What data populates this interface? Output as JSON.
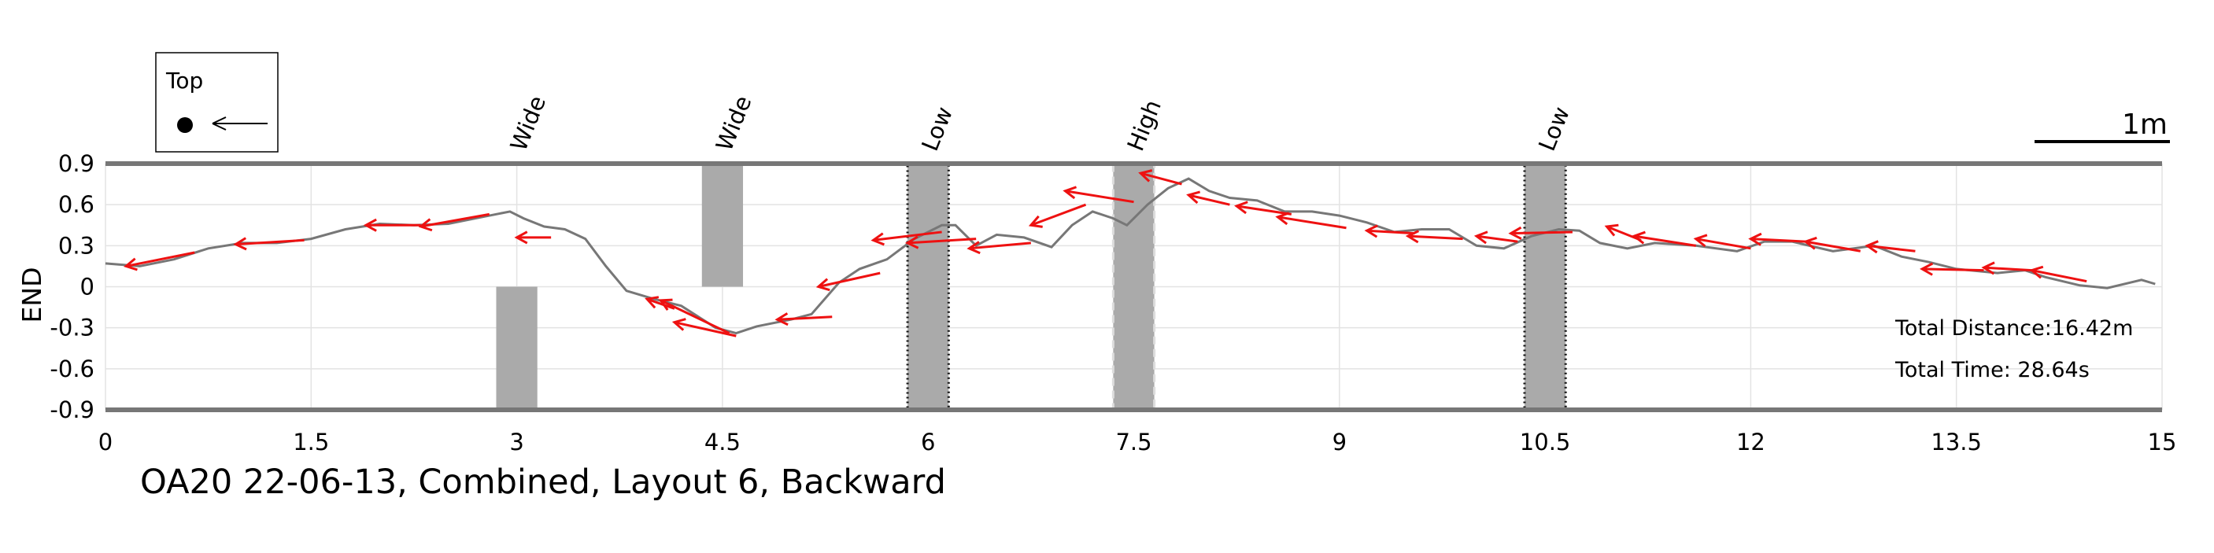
{
  "chart_data": {
    "type": "line",
    "title": "OA20 22-06-13, Combined, Layout 6, Backward",
    "ylabel": "END",
    "xlabel": "",
    "xlim": [
      0,
      15
    ],
    "ylim": [
      -0.9,
      0.9
    ],
    "xticks": [
      "0",
      "1.5",
      "3",
      "4.5",
      "6",
      "7.5",
      "9",
      "10.5",
      "12",
      "13.5",
      "15"
    ],
    "yticks": [
      "0.9",
      "0.6",
      "0.3",
      "0",
      "-0.3",
      "-0.6",
      "-0.9"
    ],
    "grid": true,
    "path_color": "#777777",
    "arrow_color": "#ee1111",
    "obstacle_color": "#aaaaaa",
    "path": [
      [
        0.0,
        0.17
      ],
      [
        0.25,
        0.15
      ],
      [
        0.5,
        0.2
      ],
      [
        0.75,
        0.28
      ],
      [
        1.0,
        0.32
      ],
      [
        1.25,
        0.32
      ],
      [
        1.5,
        0.35
      ],
      [
        1.75,
        0.42
      ],
      [
        2.0,
        0.46
      ],
      [
        2.25,
        0.45
      ],
      [
        2.5,
        0.46
      ],
      [
        2.75,
        0.51
      ],
      [
        2.95,
        0.55
      ],
      [
        3.05,
        0.5
      ],
      [
        3.2,
        0.44
      ],
      [
        3.35,
        0.42
      ],
      [
        3.5,
        0.35
      ],
      [
        3.65,
        0.15
      ],
      [
        3.8,
        -0.03
      ],
      [
        4.0,
        -0.09
      ],
      [
        4.2,
        -0.14
      ],
      [
        4.45,
        -0.3
      ],
      [
        4.6,
        -0.34
      ],
      [
        4.75,
        -0.29
      ],
      [
        5.0,
        -0.24
      ],
      [
        5.15,
        -0.2
      ],
      [
        5.35,
        0.03
      ],
      [
        5.5,
        0.13
      ],
      [
        5.7,
        0.2
      ],
      [
        5.9,
        0.35
      ],
      [
        6.1,
        0.45
      ],
      [
        6.2,
        0.45
      ],
      [
        6.35,
        0.3
      ],
      [
        6.5,
        0.38
      ],
      [
        6.7,
        0.36
      ],
      [
        6.9,
        0.29
      ],
      [
        7.05,
        0.45
      ],
      [
        7.2,
        0.55
      ],
      [
        7.35,
        0.5
      ],
      [
        7.45,
        0.45
      ],
      [
        7.6,
        0.6
      ],
      [
        7.75,
        0.72
      ],
      [
        7.9,
        0.79
      ],
      [
        8.05,
        0.7
      ],
      [
        8.2,
        0.65
      ],
      [
        8.4,
        0.63
      ],
      [
        8.6,
        0.55
      ],
      [
        8.8,
        0.55
      ],
      [
        9.0,
        0.52
      ],
      [
        9.2,
        0.47
      ],
      [
        9.4,
        0.4
      ],
      [
        9.6,
        0.42
      ],
      [
        9.8,
        0.42
      ],
      [
        10.0,
        0.3
      ],
      [
        10.2,
        0.28
      ],
      [
        10.4,
        0.37
      ],
      [
        10.6,
        0.42
      ],
      [
        10.75,
        0.41
      ],
      [
        10.9,
        0.32
      ],
      [
        11.1,
        0.28
      ],
      [
        11.3,
        0.32
      ],
      [
        11.6,
        0.3
      ],
      [
        11.9,
        0.26
      ],
      [
        12.1,
        0.33
      ],
      [
        12.3,
        0.33
      ],
      [
        12.6,
        0.26
      ],
      [
        12.9,
        0.3
      ],
      [
        13.1,
        0.22
      ],
      [
        13.3,
        0.18
      ],
      [
        13.5,
        0.13
      ],
      [
        13.8,
        0.1
      ],
      [
        14.0,
        0.12
      ],
      [
        14.15,
        0.07
      ],
      [
        14.4,
        0.01
      ],
      [
        14.6,
        -0.01
      ],
      [
        14.85,
        0.05
      ],
      [
        14.95,
        0.02
      ]
    ],
    "arrows": [
      [
        0.65,
        0.25,
        0.15,
        0.15
      ],
      [
        1.45,
        0.34,
        0.95,
        0.31
      ],
      [
        2.3,
        0.45,
        1.9,
        0.45
      ],
      [
        2.8,
        0.53,
        2.3,
        0.44
      ],
      [
        3.25,
        0.36,
        3.0,
        0.36
      ],
      [
        4.15,
        -0.16,
        3.95,
        -0.09
      ],
      [
        4.6,
        -0.36,
        4.15,
        -0.26
      ],
      [
        4.55,
        -0.34,
        4.05,
        -0.1
      ],
      [
        5.3,
        -0.22,
        4.9,
        -0.24
      ],
      [
        5.65,
        0.1,
        5.2,
        0.0
      ],
      [
        6.1,
        0.4,
        5.6,
        0.34
      ],
      [
        6.35,
        0.35,
        5.85,
        0.32
      ],
      [
        6.75,
        0.32,
        6.3,
        0.28
      ],
      [
        7.15,
        0.6,
        6.75,
        0.45
      ],
      [
        7.5,
        0.62,
        7.0,
        0.7
      ],
      [
        7.85,
        0.75,
        7.55,
        0.83
      ],
      [
        8.2,
        0.6,
        7.9,
        0.67
      ],
      [
        8.65,
        0.53,
        8.25,
        0.59
      ],
      [
        9.05,
        0.43,
        8.55,
        0.51
      ],
      [
        9.55,
        0.39,
        9.2,
        0.41
      ],
      [
        9.9,
        0.35,
        9.5,
        0.37
      ],
      [
        10.3,
        0.33,
        10.0,
        0.37
      ],
      [
        10.7,
        0.4,
        10.25,
        0.39
      ],
      [
        11.2,
        0.34,
        10.95,
        0.44
      ],
      [
        11.6,
        0.3,
        11.15,
        0.37
      ],
      [
        12.0,
        0.28,
        11.6,
        0.35
      ],
      [
        12.4,
        0.33,
        12.0,
        0.35
      ],
      [
        12.8,
        0.26,
        12.4,
        0.33
      ],
      [
        13.2,
        0.26,
        12.85,
        0.3
      ],
      [
        13.7,
        0.12,
        13.25,
        0.13
      ],
      [
        14.05,
        0.12,
        13.7,
        0.14
      ],
      [
        14.45,
        0.04,
        14.05,
        0.12
      ]
    ],
    "obstacles": [
      {
        "label": "Wide",
        "x": [
          2.85,
          3.15
        ],
        "y": [
          -0.9,
          0
        ],
        "style": "solid"
      },
      {
        "label": "Wide",
        "x": [
          4.35,
          4.65
        ],
        "y": [
          0,
          0.9
        ],
        "style": "solid"
      },
      {
        "label": "Low",
        "x": [
          5.85,
          6.15
        ],
        "y": [
          -0.9,
          0.9
        ],
        "style": "dotted"
      },
      {
        "label": "High",
        "x": [
          7.35,
          7.65
        ],
        "y": [
          -0.9,
          0.9
        ],
        "style": "dashed"
      },
      {
        "label": "Low",
        "x": [
          10.35,
          10.65
        ],
        "y": [
          -0.9,
          0.9
        ],
        "style": "dotted"
      }
    ],
    "annotations": [
      "Total Distance:16.42m",
      "Total Time: 28.64s"
    ],
    "scale_bar_label": "1m",
    "legend": {
      "label": "Top",
      "placement": "top-left"
    }
  }
}
